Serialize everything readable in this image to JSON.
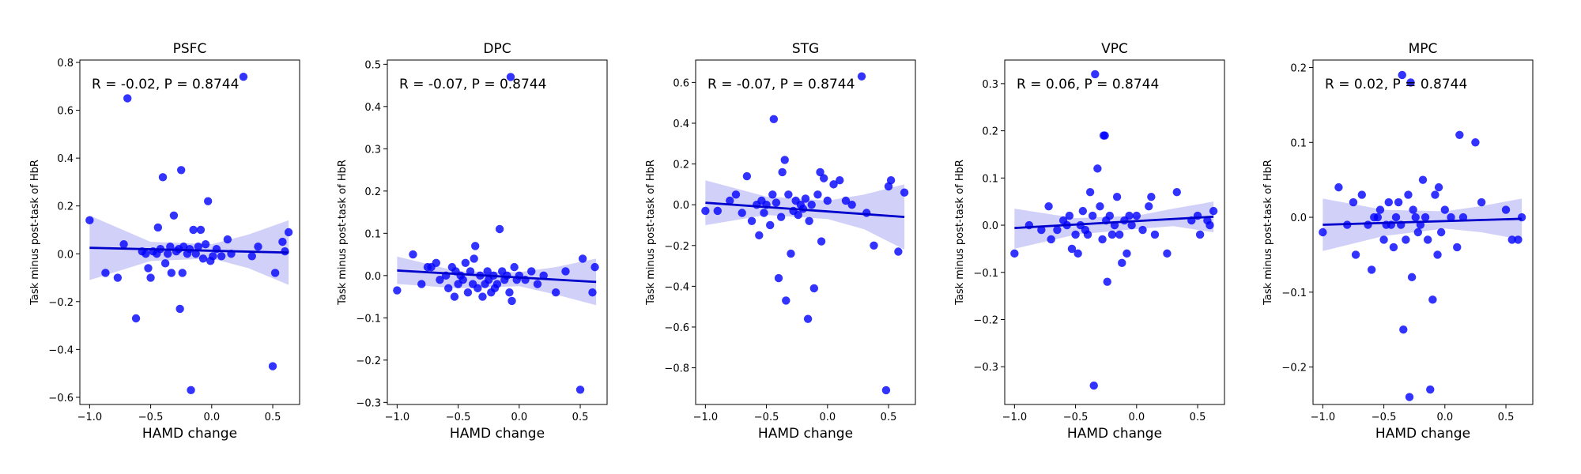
{
  "colors": {
    "points": "#0000ff",
    "band": "#c8c8f7",
    "line": "#0000cc",
    "frame": "#000000"
  },
  "chart_data": [
    {
      "type": "scatter",
      "title": "PSFC",
      "xlabel": "HAMD change",
      "ylabel": "Task minus post-task of HbR",
      "annotation": "R = -0.02, P = 0.8744",
      "xlim": [
        -1.08,
        0.72
      ],
      "ylim": [
        -0.63,
        0.81
      ],
      "xticks": [
        -1.0,
        -0.5,
        0.0,
        0.5
      ],
      "xtick_labels": [
        "−1.0",
        "−0.5",
        "0.0",
        "0.5"
      ],
      "yticks": [
        -0.6,
        -0.4,
        -0.2,
        0.0,
        0.2,
        0.4,
        0.6,
        0.8
      ],
      "ytick_labels": [
        "−0.6",
        "−0.4",
        "−0.2",
        "0.0",
        "0.2",
        "0.4",
        "0.6",
        "0.8"
      ],
      "fit": {
        "x": [
          -1.0,
          0.63
        ],
        "y": [
          0.025,
          0.005
        ]
      },
      "ci": {
        "x": [
          -1.0,
          -0.5,
          0.0,
          0.3,
          0.63
        ],
        "upper": [
          0.16,
          0.05,
          0.04,
          0.08,
          0.14
        ],
        "lower": [
          -0.11,
          -0.03,
          -0.02,
          -0.06,
          -0.13
        ]
      },
      "points": [
        [
          -1.0,
          0.14
        ],
        [
          -0.87,
          -0.08
        ],
        [
          -0.77,
          -0.1
        ],
        [
          -0.72,
          0.04
        ],
        [
          -0.69,
          0.65
        ],
        [
          -0.62,
          -0.27
        ],
        [
          -0.57,
          0.01
        ],
        [
          -0.54,
          0.0
        ],
        [
          -0.52,
          -0.06
        ],
        [
          -0.5,
          -0.1
        ],
        [
          -0.48,
          0.01
        ],
        [
          -0.45,
          0.0
        ],
        [
          -0.44,
          0.11
        ],
        [
          -0.42,
          0.02
        ],
        [
          -0.4,
          0.32
        ],
        [
          -0.38,
          -0.04
        ],
        [
          -0.36,
          0.0
        ],
        [
          -0.34,
          0.03
        ],
        [
          -0.33,
          -0.08
        ],
        [
          -0.31,
          0.16
        ],
        [
          -0.29,
          0.01
        ],
        [
          -0.27,
          0.02
        ],
        [
          -0.26,
          -0.23
        ],
        [
          -0.25,
          0.35
        ],
        [
          -0.24,
          -0.08
        ],
        [
          -0.23,
          0.03
        ],
        [
          -0.2,
          0.0
        ],
        [
          -0.18,
          0.02
        ],
        [
          -0.17,
          -0.57
        ],
        [
          -0.15,
          0.1
        ],
        [
          -0.13,
          0.0
        ],
        [
          -0.11,
          0.03
        ],
        [
          -0.09,
          0.1
        ],
        [
          -0.07,
          -0.02
        ],
        [
          -0.05,
          0.04
        ],
        [
          -0.03,
          0.22
        ],
        [
          -0.01,
          -0.03
        ],
        [
          0.01,
          -0.01
        ],
        [
          0.04,
          0.02
        ],
        [
          0.08,
          -0.01
        ],
        [
          0.13,
          0.06
        ],
        [
          0.16,
          0.0
        ],
        [
          0.26,
          0.74
        ],
        [
          0.33,
          -0.01
        ],
        [
          0.38,
          0.03
        ],
        [
          0.5,
          -0.47
        ],
        [
          0.52,
          -0.08
        ],
        [
          0.58,
          0.05
        ],
        [
          0.6,
          0.01
        ],
        [
          0.63,
          0.09
        ]
      ]
    },
    {
      "type": "scatter",
      "title": "DPC",
      "xlabel": "HAMD change",
      "ylabel": "Task minus post-task of HbR",
      "annotation": "R = -0.07, P = 0.8744",
      "xlim": [
        -1.08,
        0.72
      ],
      "ylim": [
        -0.305,
        0.51
      ],
      "xticks": [
        -1.0,
        -0.5,
        0.0,
        0.5
      ],
      "xtick_labels": [
        "−1.0",
        "−0.5",
        "0.0",
        "0.5"
      ],
      "yticks": [
        -0.3,
        -0.2,
        -0.1,
        0.0,
        0.1,
        0.2,
        0.3,
        0.4,
        0.5
      ],
      "ytick_labels": [
        "−0.3",
        "−0.2",
        "−0.1",
        "0.0",
        "0.1",
        "0.2",
        "0.3",
        "0.4",
        "0.5"
      ],
      "fit": {
        "x": [
          -1.0,
          0.63
        ],
        "y": [
          0.012,
          -0.015
        ]
      },
      "ci": {
        "x": [
          -1.0,
          -0.5,
          0.0,
          0.3,
          0.63
        ],
        "upper": [
          0.045,
          0.01,
          0.008,
          0.02,
          0.04
        ],
        "lower": [
          -0.02,
          -0.03,
          -0.025,
          -0.045,
          -0.07
        ]
      },
      "points": [
        [
          -1.0,
          -0.035
        ],
        [
          -0.87,
          0.05
        ],
        [
          -0.8,
          -0.02
        ],
        [
          -0.75,
          0.02
        ],
        [
          -0.72,
          0.02
        ],
        [
          -0.68,
          0.03
        ],
        [
          -0.65,
          -0.01
        ],
        [
          -0.6,
          0.0
        ],
        [
          -0.58,
          -0.03
        ],
        [
          -0.55,
          0.02
        ],
        [
          -0.53,
          -0.05
        ],
        [
          -0.52,
          0.01
        ],
        [
          -0.5,
          -0.02
        ],
        [
          -0.48,
          0.0
        ],
        [
          -0.46,
          -0.01
        ],
        [
          -0.44,
          0.03
        ],
        [
          -0.42,
          -0.04
        ],
        [
          -0.4,
          0.01
        ],
        [
          -0.38,
          -0.02
        ],
        [
          -0.37,
          0.04
        ],
        [
          -0.36,
          0.07
        ],
        [
          -0.34,
          -0.03
        ],
        [
          -0.32,
          0.0
        ],
        [
          -0.3,
          -0.05
        ],
        [
          -0.28,
          -0.02
        ],
        [
          -0.26,
          0.01
        ],
        [
          -0.25,
          -0.01
        ],
        [
          -0.23,
          -0.04
        ],
        [
          -0.21,
          0.0
        ],
        [
          -0.2,
          -0.03
        ],
        [
          -0.18,
          -0.02
        ],
        [
          -0.16,
          0.11
        ],
        [
          -0.14,
          0.01
        ],
        [
          -0.12,
          -0.01
        ],
        [
          -0.1,
          0.0
        ],
        [
          -0.08,
          -0.04
        ],
        [
          -0.07,
          0.47
        ],
        [
          -0.06,
          -0.06
        ],
        [
          -0.04,
          0.02
        ],
        [
          -0.02,
          -0.01
        ],
        [
          0.0,
          0.0
        ],
        [
          0.05,
          -0.01
        ],
        [
          0.1,
          0.01
        ],
        [
          0.15,
          -0.02
        ],
        [
          0.2,
          0.0
        ],
        [
          0.3,
          -0.04
        ],
        [
          0.38,
          0.01
        ],
        [
          0.5,
          -0.27
        ],
        [
          0.52,
          0.04
        ],
        [
          0.6,
          -0.04
        ],
        [
          0.62,
          0.02
        ]
      ]
    },
    {
      "type": "scatter",
      "title": "STG",
      "xlabel": "HAMD change",
      "ylabel": "Task minus post-task of HbR",
      "annotation": "R = -0.07, P = 0.8744",
      "xlim": [
        -1.08,
        0.72
      ],
      "ylim": [
        -0.98,
        0.71
      ],
      "xticks": [
        -1.0,
        -0.5,
        0.0,
        0.5
      ],
      "xtick_labels": [
        "−1.0",
        "−0.5",
        "0.0",
        "0.5"
      ],
      "yticks": [
        -0.8,
        -0.6,
        -0.4,
        -0.2,
        0.0,
        0.2,
        0.4,
        0.6
      ],
      "ytick_labels": [
        "−0.8",
        "−0.6",
        "−0.4",
        "−0.2",
        "0.0",
        "0.2",
        "0.4",
        "0.6"
      ],
      "fit": {
        "x": [
          -1.0,
          0.63
        ],
        "y": [
          0.01,
          -0.06
        ]
      },
      "ci": {
        "x": [
          -1.0,
          -0.5,
          0.0,
          0.3,
          0.63
        ],
        "upper": [
          0.12,
          0.04,
          0.02,
          0.05,
          0.1
        ],
        "lower": [
          -0.1,
          -0.05,
          -0.07,
          -0.12,
          -0.22
        ]
      },
      "points": [
        [
          -1.0,
          -0.03
        ],
        [
          -0.9,
          -0.03
        ],
        [
          -0.8,
          0.02
        ],
        [
          -0.75,
          0.05
        ],
        [
          -0.7,
          -0.04
        ],
        [
          -0.66,
          0.14
        ],
        [
          -0.62,
          -0.08
        ],
        [
          -0.58,
          0.0
        ],
        [
          -0.56,
          -0.15
        ],
        [
          -0.54,
          0.02
        ],
        [
          -0.52,
          -0.04
        ],
        [
          -0.5,
          0.0
        ],
        [
          -0.47,
          -0.1
        ],
        [
          -0.45,
          0.05
        ],
        [
          -0.44,
          0.42
        ],
        [
          -0.42,
          0.01
        ],
        [
          -0.4,
          -0.36
        ],
        [
          -0.38,
          -0.06
        ],
        [
          -0.37,
          0.16
        ],
        [
          -0.35,
          0.22
        ],
        [
          -0.34,
          -0.47
        ],
        [
          -0.32,
          0.05
        ],
        [
          -0.3,
          -0.24
        ],
        [
          -0.28,
          -0.03
        ],
        [
          -0.26,
          0.02
        ],
        [
          -0.24,
          -0.05
        ],
        [
          -0.22,
          0.0
        ],
        [
          -0.2,
          -0.02
        ],
        [
          -0.18,
          0.03
        ],
        [
          -0.16,
          -0.56
        ],
        [
          -0.15,
          -0.08
        ],
        [
          -0.13,
          0.0
        ],
        [
          -0.11,
          -0.41
        ],
        [
          -0.08,
          0.05
        ],
        [
          -0.06,
          0.16
        ],
        [
          -0.05,
          -0.18
        ],
        [
          -0.03,
          0.13
        ],
        [
          0.0,
          0.02
        ],
        [
          0.05,
          0.1
        ],
        [
          0.1,
          0.12
        ],
        [
          0.15,
          0.02
        ],
        [
          0.2,
          0.0
        ],
        [
          0.28,
          0.63
        ],
        [
          0.32,
          -0.04
        ],
        [
          0.38,
          -0.2
        ],
        [
          0.48,
          -0.91
        ],
        [
          0.5,
          0.09
        ],
        [
          0.52,
          0.12
        ],
        [
          0.58,
          -0.23
        ],
        [
          0.63,
          0.06
        ]
      ]
    },
    {
      "type": "scatter",
      "title": "VPC",
      "xlabel": "HAMD change",
      "ylabel": "Task minus post-task of HbR",
      "annotation": "R = 0.06, P = 0.8744",
      "xlim": [
        -1.08,
        0.72
      ],
      "ylim": [
        -0.38,
        0.35
      ],
      "xticks": [
        -1.0,
        -0.5,
        0.0,
        0.5
      ],
      "xtick_labels": [
        "−1.0",
        "−0.5",
        "0.0",
        "0.5"
      ],
      "yticks": [
        -0.3,
        -0.2,
        -0.1,
        0.0,
        0.1,
        0.2,
        0.3
      ],
      "ytick_labels": [
        "−0.3",
        "−0.2",
        "−0.1",
        "0.0",
        "0.1",
        "0.2",
        "0.3"
      ],
      "fit": {
        "x": [
          -1.0,
          0.63
        ],
        "y": [
          -0.006,
          0.018
        ]
      },
      "ci": {
        "x": [
          -1.0,
          -0.5,
          0.0,
          0.3,
          0.63
        ],
        "upper": [
          0.035,
          0.015,
          0.02,
          0.035,
          0.05
        ],
        "lower": [
          -0.05,
          -0.02,
          -0.008,
          -0.002,
          -0.015
        ]
      },
      "points": [
        [
          -1.0,
          -0.06
        ],
        [
          -0.88,
          0.0
        ],
        [
          -0.78,
          -0.01
        ],
        [
          -0.72,
          0.04
        ],
        [
          -0.7,
          -0.03
        ],
        [
          -0.65,
          -0.01
        ],
        [
          -0.6,
          0.01
        ],
        [
          -0.57,
          0.0
        ],
        [
          -0.55,
          0.02
        ],
        [
          -0.53,
          -0.05
        ],
        [
          -0.5,
          -0.02
        ],
        [
          -0.48,
          -0.06
        ],
        [
          -0.46,
          0.0
        ],
        [
          -0.44,
          0.03
        ],
        [
          -0.42,
          -0.01
        ],
        [
          -0.4,
          -0.02
        ],
        [
          -0.38,
          0.07
        ],
        [
          -0.36,
          0.02
        ],
        [
          -0.35,
          -0.34
        ],
        [
          -0.34,
          0.32
        ],
        [
          -0.32,
          0.12
        ],
        [
          -0.3,
          0.04
        ],
        [
          -0.28,
          -0.03
        ],
        [
          -0.27,
          0.19
        ],
        [
          -0.26,
          0.19
        ],
        [
          -0.25,
          0.01
        ],
        [
          -0.24,
          -0.12
        ],
        [
          -0.22,
          0.02
        ],
        [
          -0.2,
          -0.02
        ],
        [
          -0.18,
          0.0
        ],
        [
          -0.16,
          0.06
        ],
        [
          -0.14,
          -0.02
        ],
        [
          -0.12,
          -0.08
        ],
        [
          -0.1,
          0.01
        ],
        [
          -0.08,
          -0.06
        ],
        [
          -0.06,
          0.02
        ],
        [
          -0.04,
          0.0
        ],
        [
          0.0,
          0.02
        ],
        [
          0.05,
          -0.01
        ],
        [
          0.1,
          0.04
        ],
        [
          0.12,
          0.06
        ],
        [
          0.15,
          -0.02
        ],
        [
          0.25,
          -0.06
        ],
        [
          0.33,
          0.07
        ],
        [
          0.45,
          0.01
        ],
        [
          0.5,
          0.02
        ],
        [
          0.52,
          -0.02
        ],
        [
          0.58,
          0.01
        ],
        [
          0.6,
          0.0
        ],
        [
          0.63,
          0.03
        ]
      ]
    },
    {
      "type": "scatter",
      "title": "MPC",
      "xlabel": "HAMD change",
      "ylabel": "Task minus post-task of HbR",
      "annotation": "R = 0.02, P = 0.8744",
      "xlim": [
        -1.08,
        0.72
      ],
      "ylim": [
        -0.25,
        0.21
      ],
      "xticks": [
        -1.0,
        -0.5,
        0.0,
        0.5
      ],
      "xtick_labels": [
        "−1.0",
        "−0.5",
        "0.0",
        "0.5"
      ],
      "yticks": [
        -0.2,
        -0.1,
        0.0,
        0.1,
        0.2
      ],
      "ytick_labels": [
        "−0.2",
        "−0.1",
        "0.0",
        "0.1",
        "0.2"
      ],
      "fit": {
        "x": [
          -1.0,
          0.63
        ],
        "y": [
          -0.01,
          -0.002
        ]
      },
      "ci": {
        "x": [
          -1.0,
          -0.5,
          0.0,
          0.3,
          0.63
        ],
        "upper": [
          0.025,
          0.01,
          0.008,
          0.015,
          0.025
        ],
        "lower": [
          -0.045,
          -0.025,
          -0.015,
          -0.02,
          -0.03
        ]
      },
      "points": [
        [
          -1.0,
          -0.02
        ],
        [
          -0.87,
          0.04
        ],
        [
          -0.8,
          -0.01
        ],
        [
          -0.75,
          0.02
        ],
        [
          -0.73,
          -0.05
        ],
        [
          -0.68,
          0.03
        ],
        [
          -0.63,
          -0.01
        ],
        [
          -0.6,
          -0.07
        ],
        [
          -0.58,
          0.0
        ],
        [
          -0.55,
          0.0
        ],
        [
          -0.53,
          0.01
        ],
        [
          -0.5,
          -0.03
        ],
        [
          -0.48,
          -0.01
        ],
        [
          -0.46,
          0.02
        ],
        [
          -0.44,
          -0.01
        ],
        [
          -0.42,
          -0.04
        ],
        [
          -0.4,
          0.0
        ],
        [
          -0.38,
          0.02
        ],
        [
          -0.36,
          -0.01
        ],
        [
          -0.35,
          0.19
        ],
        [
          -0.34,
          -0.15
        ],
        [
          -0.32,
          -0.03
        ],
        [
          -0.3,
          0.03
        ],
        [
          -0.29,
          -0.24
        ],
        [
          -0.28,
          0.18
        ],
        [
          -0.27,
          -0.08
        ],
        [
          -0.26,
          0.01
        ],
        [
          -0.24,
          0.0
        ],
        [
          -0.22,
          -0.02
        ],
        [
          -0.2,
          -0.01
        ],
        [
          -0.18,
          0.05
        ],
        [
          -0.16,
          0.0
        ],
        [
          -0.14,
          -0.03
        ],
        [
          -0.12,
          -0.23
        ],
        [
          -0.1,
          -0.11
        ],
        [
          -0.08,
          0.03
        ],
        [
          -0.06,
          -0.05
        ],
        [
          -0.05,
          0.04
        ],
        [
          -0.03,
          -0.02
        ],
        [
          0.0,
          0.01
        ],
        [
          0.05,
          0.0
        ],
        [
          0.1,
          -0.04
        ],
        [
          0.12,
          0.11
        ],
        [
          0.15,
          0.0
        ],
        [
          0.25,
          0.1
        ],
        [
          0.3,
          0.02
        ],
        [
          0.5,
          0.01
        ],
        [
          0.55,
          -0.03
        ],
        [
          0.6,
          -0.03
        ],
        [
          0.63,
          0.0
        ]
      ]
    }
  ]
}
